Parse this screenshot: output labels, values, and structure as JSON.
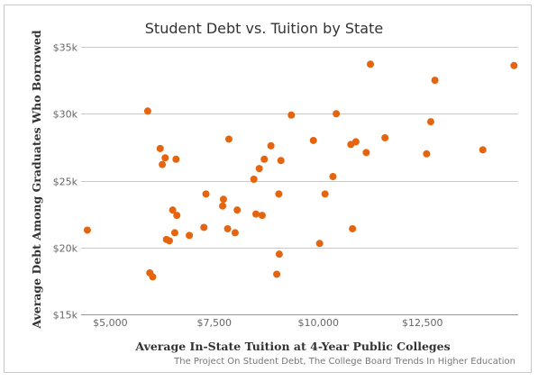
{
  "chart_data": {
    "type": "scatter",
    "title": "Student Debt vs. Tuition by State",
    "xlabel": "Average In-State Tuition at 4-Year Public Colleges",
    "ylabel": "Average Debt Among Graduates Who Borrowed",
    "source": "The Project On Student Debt, The College Board Trends In Higher Education",
    "xlim": [
      4300,
      14800
    ],
    "ylim": [
      15000,
      35000
    ],
    "x_ticks": [
      {
        "value": 5000,
        "label": "$5,000"
      },
      {
        "value": 7500,
        "label": "$7,500"
      },
      {
        "value": 10000,
        "label": "$10,000"
      },
      {
        "value": 12500,
        "label": "$12,500"
      }
    ],
    "y_ticks": [
      {
        "value": 15000,
        "label": "$15k"
      },
      {
        "value": 20000,
        "label": "$20k"
      },
      {
        "value": 25000,
        "label": "$25k"
      },
      {
        "value": 30000,
        "label": "$30k"
      },
      {
        "value": 35000,
        "label": "$35k"
      }
    ],
    "grid": true,
    "color": "#e5640f",
    "points": [
      [
        4450,
        21300
      ],
      [
        5900,
        30200
      ],
      [
        5950,
        18100
      ],
      [
        6020,
        17800
      ],
      [
        6200,
        27400
      ],
      [
        6250,
        26200
      ],
      [
        6320,
        26700
      ],
      [
        6350,
        20600
      ],
      [
        6420,
        20500
      ],
      [
        6500,
        22800
      ],
      [
        6550,
        21100
      ],
      [
        6580,
        26600
      ],
      [
        6600,
        22400
      ],
      [
        6900,
        20900
      ],
      [
        7250,
        21500
      ],
      [
        7300,
        24000
      ],
      [
        7700,
        23100
      ],
      [
        7720,
        23600
      ],
      [
        7820,
        21400
      ],
      [
        7850,
        28100
      ],
      [
        8000,
        21100
      ],
      [
        8050,
        22800
      ],
      [
        8450,
        25100
      ],
      [
        8500,
        22500
      ],
      [
        8580,
        25900
      ],
      [
        8650,
        22400
      ],
      [
        8700,
        26600
      ],
      [
        8860,
        27600
      ],
      [
        9000,
        18000
      ],
      [
        9050,
        24000
      ],
      [
        9060,
        19500
      ],
      [
        9100,
        26500
      ],
      [
        9350,
        29900
      ],
      [
        9880,
        28000
      ],
      [
        10030,
        20300
      ],
      [
        10160,
        24000
      ],
      [
        10350,
        25300
      ],
      [
        10430,
        30000
      ],
      [
        10780,
        27700
      ],
      [
        10820,
        21400
      ],
      [
        10900,
        27900
      ],
      [
        11150,
        27100
      ],
      [
        11250,
        33700
      ],
      [
        11600,
        28200
      ],
      [
        12600,
        27000
      ],
      [
        12700,
        29400
      ],
      [
        12800,
        32500
      ],
      [
        13950,
        27300
      ],
      [
        14700,
        33600
      ]
    ]
  }
}
